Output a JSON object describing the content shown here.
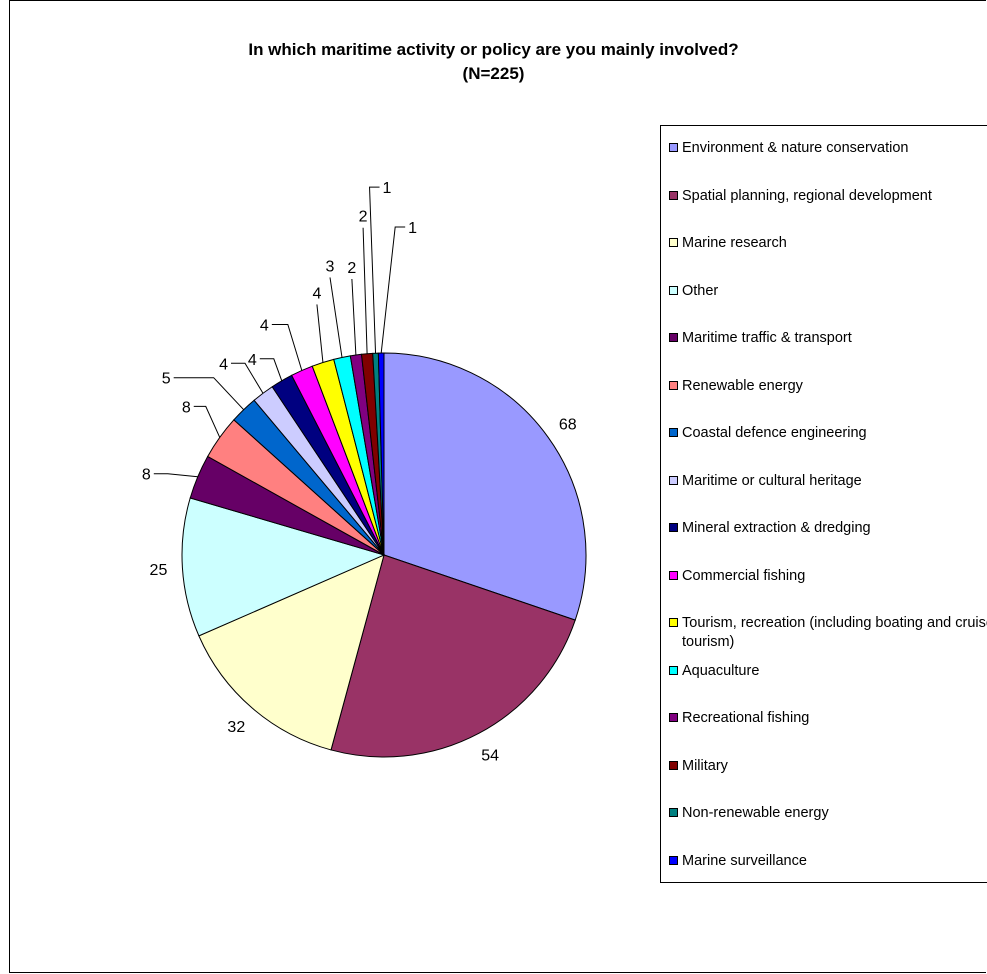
{
  "chart_data": {
    "type": "pie",
    "title": "In which maritime activity or policy are you mainly involved?",
    "subtitle": "(N=225)",
    "legend_position": "right",
    "slices": [
      {
        "label": "Environment & nature conservation",
        "value": 68,
        "color": "#9999ff"
      },
      {
        "label": "Spatial planning, regional development",
        "value": 54,
        "color": "#993366"
      },
      {
        "label": "Marine research",
        "value": 32,
        "color": "#ffffcc"
      },
      {
        "label": "Other",
        "value": 25,
        "color": "#ccffff"
      },
      {
        "label": "Maritime traffic & transport",
        "value": 8,
        "color": "#660066"
      },
      {
        "label": "Renewable energy",
        "value": 8,
        "color": "#ff8080"
      },
      {
        "label": "Coastal defence engineering",
        "value": 5,
        "color": "#0066cc"
      },
      {
        "label": "Maritime or cultural heritage",
        "value": 4,
        "color": "#ccccff"
      },
      {
        "label": "Mineral extraction & dredging",
        "value": 4,
        "color": "#000080"
      },
      {
        "label": "Commercial fishing",
        "value": 4,
        "color": "#ff00ff"
      },
      {
        "label": "Tourism, recreation (including boating and cruise tourism)",
        "value": 4,
        "color": "#ffff00"
      },
      {
        "label": "Aquaculture",
        "value": 3,
        "color": "#00ffff"
      },
      {
        "label": "Recreational fishing",
        "value": 2,
        "color": "#800080"
      },
      {
        "label": "Military",
        "value": 2,
        "color": "#800000"
      },
      {
        "label": "Non-renewable energy",
        "value": 1,
        "color": "#008080"
      },
      {
        "label": "Marine surveillance",
        "value": 1,
        "color": "#0000ff"
      }
    ]
  }
}
